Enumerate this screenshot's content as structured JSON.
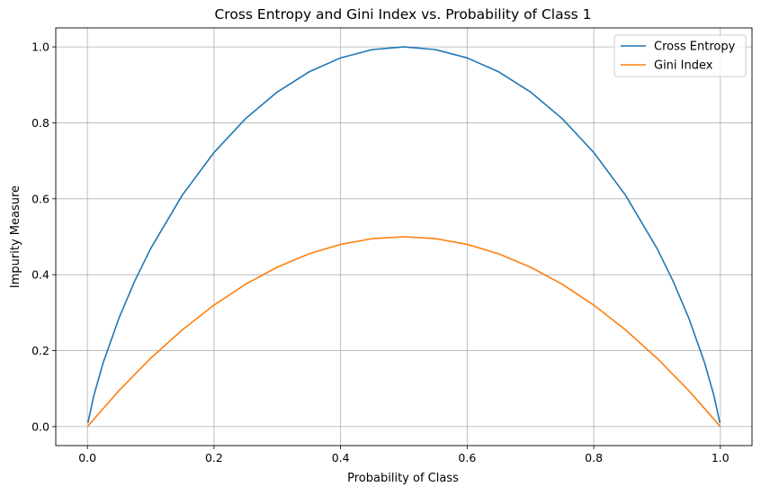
{
  "chart_data": {
    "type": "line",
    "title": "Cross Entropy and Gini Index vs. Probability of Class 1",
    "xlabel": "Probability of Class",
    "ylabel": "Impurity Measure",
    "xlim": [
      -0.05,
      1.05
    ],
    "ylim": [
      -0.05,
      1.05
    ],
    "xticks": [
      0.0,
      0.2,
      0.4,
      0.6,
      0.8,
      1.0
    ],
    "yticks": [
      0.0,
      0.2,
      0.4,
      0.6,
      0.8,
      1.0
    ],
    "xtick_labels": [
      "0.0",
      "0.2",
      "0.4",
      "0.6",
      "0.8",
      "1.0"
    ],
    "ytick_labels": [
      "0.0",
      "0.2",
      "0.4",
      "0.6",
      "0.8",
      "1.0"
    ],
    "grid": true,
    "legend_position": "top-right",
    "series": [
      {
        "name": "Cross Entropy",
        "color": "#1f77b4",
        "x": [
          0.001,
          0.01,
          0.025,
          0.05,
          0.075,
          0.1,
          0.15,
          0.2,
          0.25,
          0.3,
          0.35,
          0.4,
          0.45,
          0.5,
          0.55,
          0.6,
          0.65,
          0.7,
          0.75,
          0.8,
          0.85,
          0.9,
          0.925,
          0.95,
          0.975,
          0.99,
          0.999
        ],
        "y": [
          0.0114,
          0.0808,
          0.1687,
          0.2864,
          0.3843,
          0.469,
          0.6098,
          0.7219,
          0.8113,
          0.8813,
          0.9341,
          0.971,
          0.9928,
          1.0,
          0.9928,
          0.971,
          0.9341,
          0.8813,
          0.8113,
          0.7219,
          0.6098,
          0.469,
          0.3843,
          0.2864,
          0.1687,
          0.0808,
          0.0114
        ]
      },
      {
        "name": "Gini Index",
        "color": "#ff7f0e",
        "x": [
          0.001,
          0.05,
          0.1,
          0.15,
          0.2,
          0.25,
          0.3,
          0.35,
          0.4,
          0.45,
          0.5,
          0.55,
          0.6,
          0.65,
          0.7,
          0.75,
          0.8,
          0.85,
          0.9,
          0.95,
          0.999
        ],
        "y": [
          0.002,
          0.095,
          0.18,
          0.255,
          0.32,
          0.375,
          0.42,
          0.455,
          0.48,
          0.495,
          0.5,
          0.495,
          0.48,
          0.455,
          0.42,
          0.375,
          0.32,
          0.255,
          0.18,
          0.095,
          0.002
        ]
      }
    ]
  }
}
